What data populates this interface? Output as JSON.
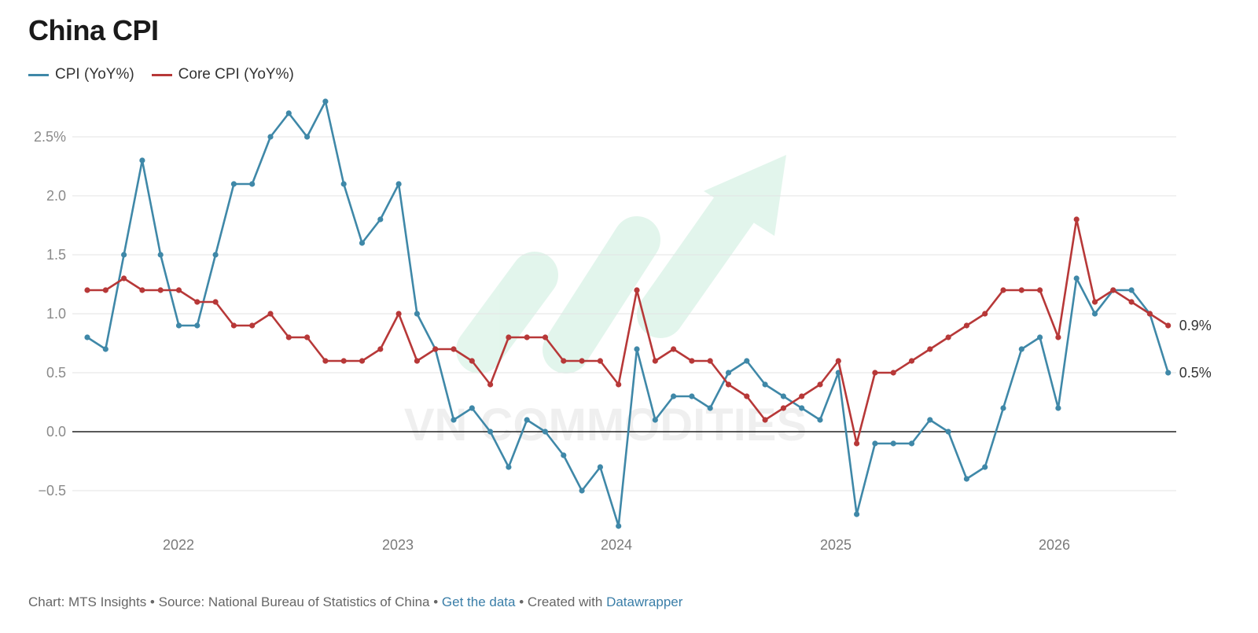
{
  "chart_data": {
    "type": "line",
    "title": "China CPI",
    "x_tick_labels": [
      "2022",
      "2023",
      "2024",
      "2025",
      "2026"
    ],
    "y_tick_labels": [
      "2.5%",
      "2.0",
      "1.5",
      "1.0",
      "0.5",
      "0.0",
      "−0.5"
    ],
    "ylim": [
      -0.8,
      2.8
    ],
    "grid": true,
    "legend_position": "top-left",
    "watermark": "VN COMMODITIES",
    "series": [
      {
        "name": "CPI (YoY%)",
        "color": "#3f88a8",
        "end_label": "0.5%",
        "values": [
          0.8,
          0.7,
          1.5,
          2.3,
          1.5,
          0.9,
          0.9,
          1.5,
          2.1,
          2.1,
          2.5,
          2.7,
          2.5,
          2.8,
          2.1,
          1.6,
          1.8,
          2.1,
          1.0,
          0.7,
          0.1,
          0.2,
          0.0,
          -0.3,
          0.1,
          0.0,
          -0.2,
          -0.5,
          -0.3,
          -0.8,
          0.7,
          0.1,
          0.3,
          0.3,
          0.2,
          0.5,
          0.6,
          0.4,
          0.3,
          0.2,
          0.1,
          0.5,
          -0.7,
          -0.1,
          -0.1,
          -0.1,
          0.1,
          0.0,
          -0.4,
          -0.3,
          0.2,
          0.7,
          0.8,
          0.2,
          1.3,
          1.0,
          1.2,
          1.2,
          1.0,
          0.5
        ]
      },
      {
        "name": "Core CPI (YoY%)",
        "color": "#b73838",
        "end_label": "0.9%",
        "values": [
          1.2,
          1.2,
          1.3,
          1.2,
          1.2,
          1.2,
          1.1,
          1.1,
          0.9,
          0.9,
          1.0,
          0.8,
          0.8,
          0.6,
          0.6,
          0.6,
          0.7,
          1.0,
          0.6,
          0.7,
          0.7,
          0.6,
          0.4,
          0.8,
          0.8,
          0.8,
          0.6,
          0.6,
          0.6,
          0.4,
          1.2,
          0.6,
          0.7,
          0.6,
          0.6,
          0.4,
          0.3,
          0.1,
          0.2,
          0.3,
          0.4,
          0.6,
          -0.1,
          0.5,
          0.5,
          0.6,
          0.7,
          0.8,
          0.9,
          1.0,
          1.2,
          1.2,
          1.2,
          0.8,
          1.8,
          1.1,
          1.2,
          1.1,
          1.0,
          0.9
        ]
      }
    ]
  },
  "footer": {
    "prefix": "Chart: MTS Insights • Source: National Bureau of Statistics of China • ",
    "get_data": "Get the data",
    "middle": " • Created with ",
    "tool": "Datawrapper"
  }
}
